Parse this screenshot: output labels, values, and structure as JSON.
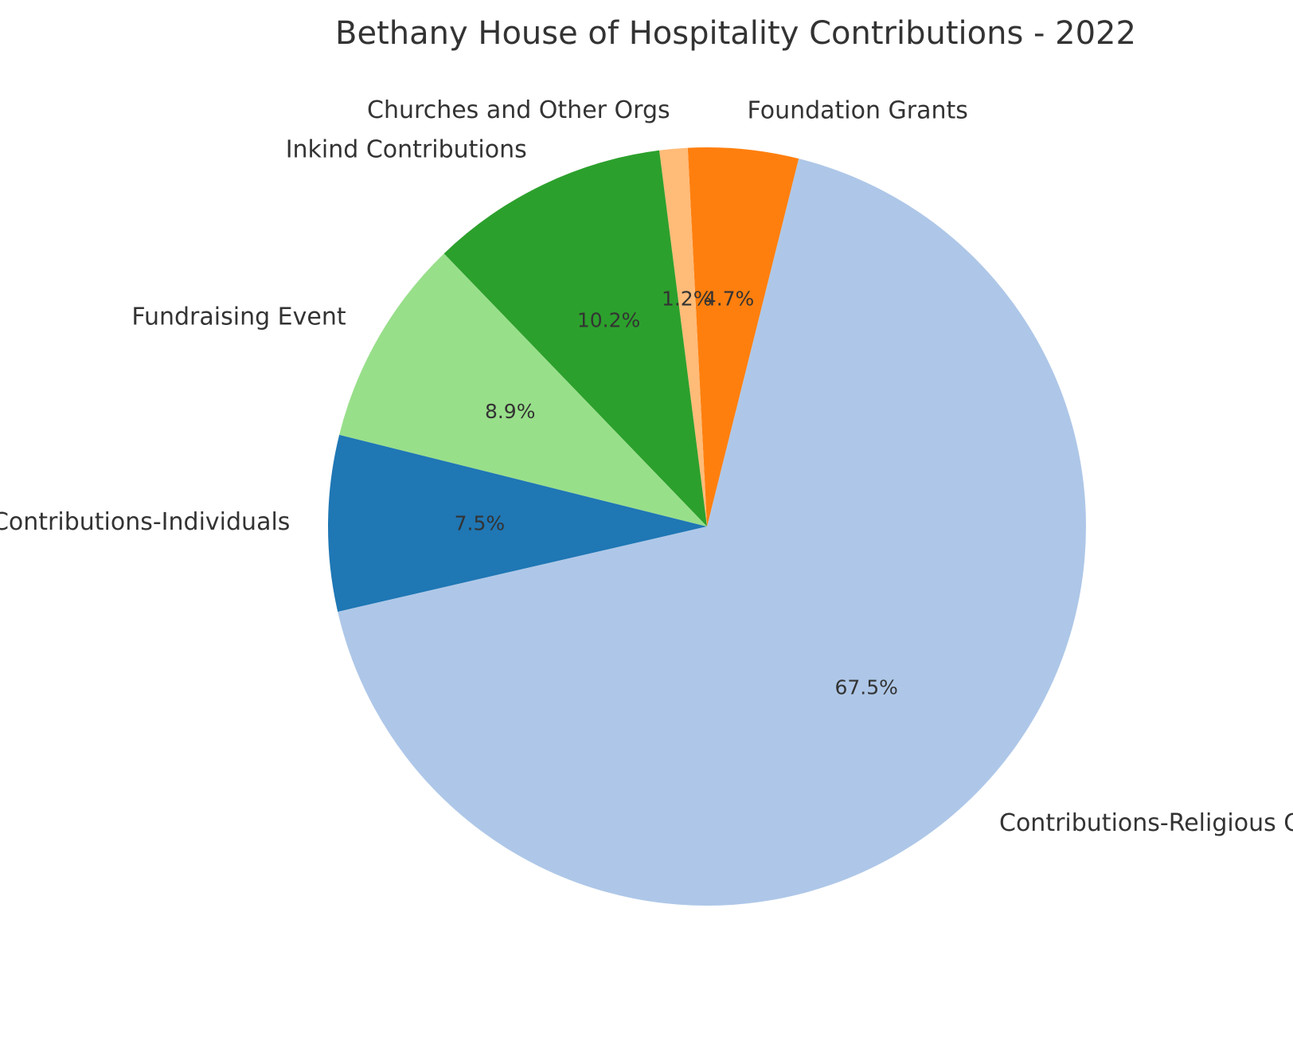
{
  "chart_data": {
    "type": "pie",
    "title": "Bethany House of Hospitality Contributions - 2022",
    "slices": [
      {
        "label": "Contributions-Individuals",
        "pct_label": "7.5%",
        "value": 7.5,
        "color": "#1f77b4"
      },
      {
        "label": "Contributions-Religious Orders",
        "pct_label": "67.5%",
        "value": 67.5,
        "color": "#aec7e8"
      },
      {
        "label": "Foundation Grants",
        "pct_label": "4.7%",
        "value": 4.7,
        "color": "#ff7f0e"
      },
      {
        "label": "Churches and Other Orgs",
        "pct_label": "1.2%",
        "value": 1.2,
        "color": "#ffbb78"
      },
      {
        "label": "Inkind Contributions",
        "pct_label": "10.2%",
        "value": 10.2,
        "color": "#2ca02c"
      },
      {
        "label": "Fundraising Event",
        "pct_label": "8.9%",
        "value": 8.9,
        "color": "#98df8a"
      }
    ]
  }
}
